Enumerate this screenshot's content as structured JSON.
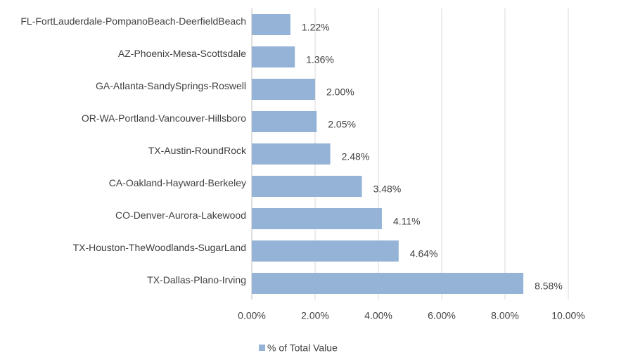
{
  "chart_data": {
    "type": "barh",
    "categories": [
      "FL-FortLauderdale-PompanoBeach-DeerfieldBeach",
      "AZ-Phoenix-Mesa-Scottsdale",
      "GA-Atlanta-SandySprings-Roswell",
      "OR-WA-Portland-Vancouver-Hillsboro",
      "TX-Austin-RoundRock",
      "CA-Oakland-Hayward-Berkeley",
      "CO-Denver-Aurora-Lakewood",
      "TX-Houston-TheWoodlands-SugarLand",
      "TX-Dallas-Plano-Irving"
    ],
    "series": [
      {
        "name": "% of Total Value",
        "color": "#95b3d7",
        "values": [
          1.22,
          1.36,
          2.0,
          2.05,
          2.48,
          3.48,
          4.11,
          4.64,
          8.58
        ],
        "value_labels": [
          "1.22%",
          "1.36%",
          "2.00%",
          "2.05%",
          "2.48%",
          "3.48%",
          "4.11%",
          "4.64%",
          "8.58%"
        ]
      }
    ],
    "xlim": [
      0,
      10
    ],
    "xticks": [
      {
        "value": 0,
        "label": "0.00%"
      },
      {
        "value": 2,
        "label": "2.00%"
      },
      {
        "value": 4,
        "label": "4.00%"
      },
      {
        "value": 6,
        "label": "6.00%"
      },
      {
        "value": 8,
        "label": "8.00%"
      },
      {
        "value": 10,
        "label": "10.00%"
      }
    ],
    "grid": true,
    "legend": "bottom"
  }
}
